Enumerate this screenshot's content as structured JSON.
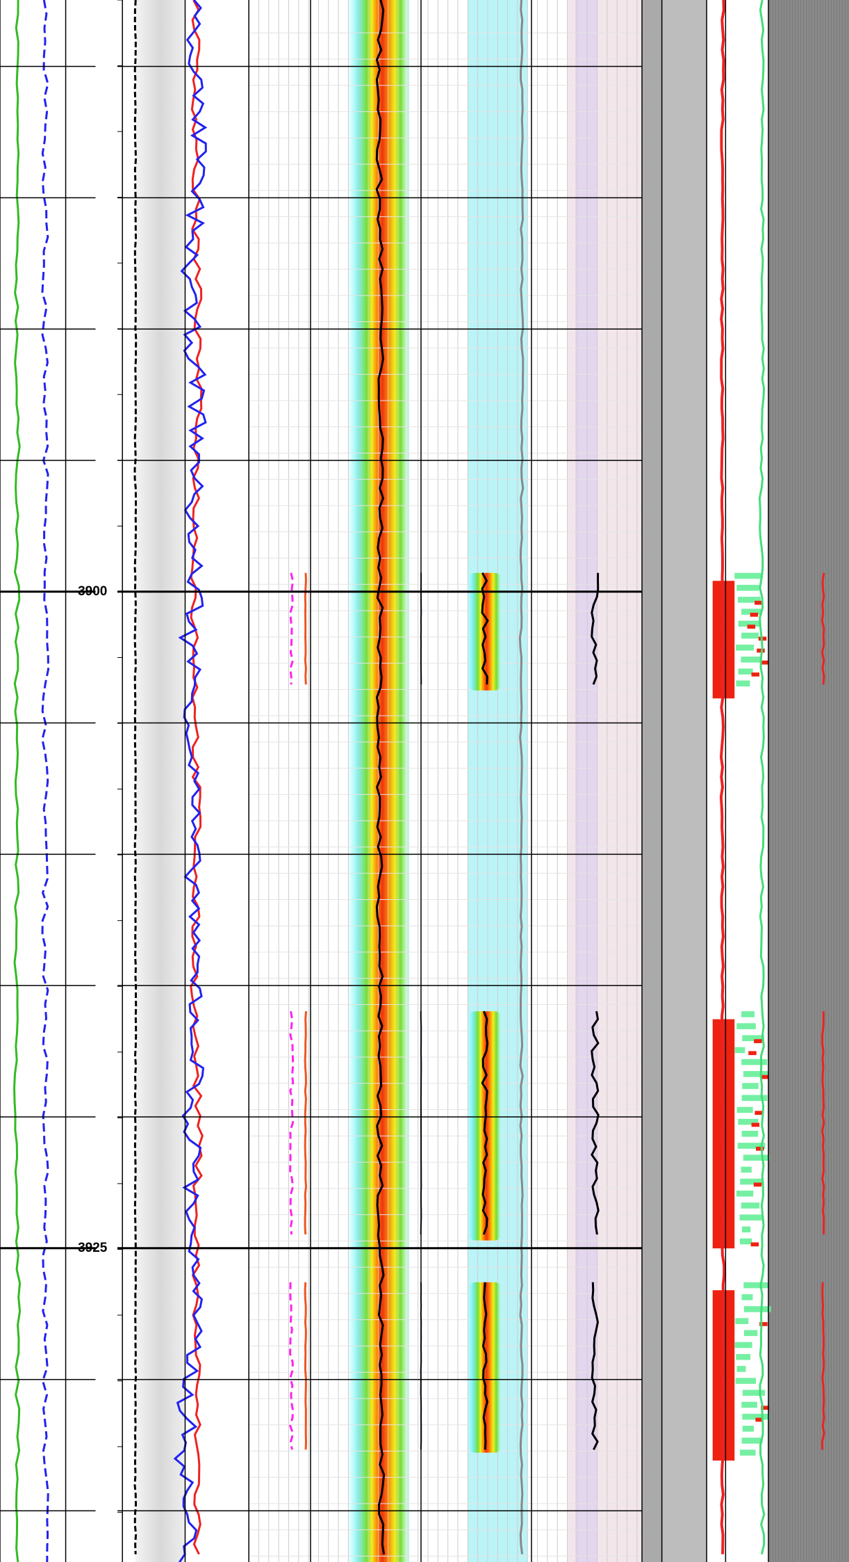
{
  "chart_data": {
    "type": "well-log",
    "ylim": [
      3877.47,
      3936.95
    ],
    "yticks": [
      {
        "value": 3880,
        "label": null
      },
      {
        "value": 3885,
        "label": null
      },
      {
        "value": 3890,
        "label": null
      },
      {
        "value": 3895,
        "label": null
      },
      3900,
      {
        "value": 3905,
        "label": null
      },
      {
        "value": 3910,
        "label": null
      },
      {
        "value": 3915,
        "label": null
      },
      {
        "value": 3920,
        "label": null
      },
      3925,
      {
        "value": 3930,
        "label": null
      },
      {
        "value": 3935,
        "label": null
      }
    ],
    "grid": true
  }
}
